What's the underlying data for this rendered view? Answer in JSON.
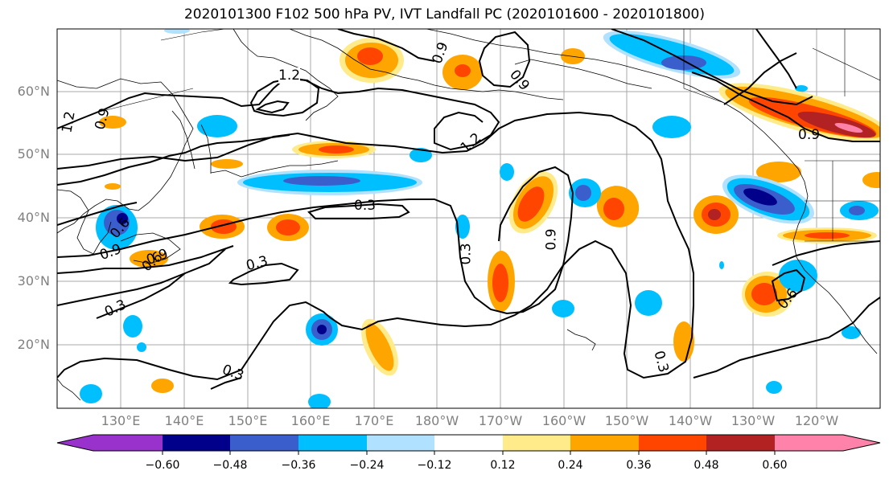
{
  "title": "2020101300 F102 500 hPa PV, IVT Landfall PC (2020101600 - 2020101800)",
  "lat_labels": [
    "60°N",
    "50°N",
    "40°N",
    "30°N",
    "20°N"
  ],
  "lon_labels": [
    "130°E",
    "140°E",
    "150°E",
    "160°E",
    "170°E",
    "180°W",
    "170°W",
    "160°W",
    "150°W",
    "140°W",
    "130°W",
    "120°W"
  ],
  "contour_labels": [
    "1.2",
    "0.9",
    "0.9",
    "1.2",
    "0.9",
    "0.6",
    "1.2",
    "0.9",
    "0.9",
    "0.6",
    "0.9",
    "0.3",
    "0.3",
    "0.3",
    "0.3",
    "0.9",
    "0.6",
    "0.3",
    "0.3"
  ],
  "colorbar": {
    "ticks": [
      "−0.60",
      "−0.48",
      "−0.36",
      "−0.24",
      "−0.12",
      "0.12",
      "0.24",
      "0.36",
      "0.48",
      "0.60"
    ],
    "colors": [
      "#9932cc",
      "#00008b",
      "#3a5fcd",
      "#00bfff",
      "#b0e2ff",
      "#ffffff",
      "#ffeb8a",
      "#ffa500",
      "#ff4500",
      "#b22222",
      "#ff82ab",
      "#ff82ab"
    ]
  }
}
